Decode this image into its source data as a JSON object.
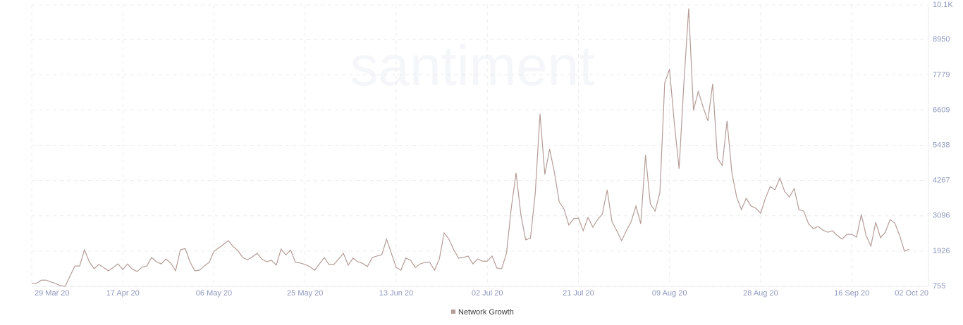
{
  "chart_data": {
    "type": "line",
    "watermark": "santiment",
    "x": [
      "29 Mar 20",
      "30 Mar 20",
      "31 Mar 20",
      "01 Apr 20",
      "02 Apr 20",
      "03 Apr 20",
      "04 Apr 20",
      "05 Apr 20",
      "06 Apr 20",
      "07 Apr 20",
      "08 Apr 20",
      "09 Apr 20",
      "10 Apr 20",
      "11 Apr 20",
      "12 Apr 20",
      "13 Apr 20",
      "14 Apr 20",
      "15 Apr 20",
      "16 Apr 20",
      "17 Apr 20",
      "18 Apr 20",
      "19 Apr 20",
      "20 Apr 20",
      "21 Apr 20",
      "22 Apr 20",
      "23 Apr 20",
      "24 Apr 20",
      "25 Apr 20",
      "26 Apr 20",
      "27 Apr 20",
      "28 Apr 20",
      "29 Apr 20",
      "30 Apr 20",
      "01 May 20",
      "02 May 20",
      "03 May 20",
      "04 May 20",
      "05 May 20",
      "06 May 20",
      "07 May 20",
      "08 May 20",
      "09 May 20",
      "10 May 20",
      "11 May 20",
      "12 May 20",
      "13 May 20",
      "14 May 20",
      "15 May 20",
      "16 May 20",
      "17 May 20",
      "18 May 20",
      "19 May 20",
      "20 May 20",
      "21 May 20",
      "22 May 20",
      "23 May 20",
      "24 May 20",
      "25 May 20",
      "26 May 20",
      "27 May 20",
      "28 May 20",
      "29 May 20",
      "30 May 20",
      "31 May 20",
      "01 Jun 20",
      "02 Jun 20",
      "03 Jun 20",
      "04 Jun 20",
      "05 Jun 20",
      "06 Jun 20",
      "07 Jun 20",
      "08 Jun 20",
      "09 Jun 20",
      "10 Jun 20",
      "11 Jun 20",
      "12 Jun 20",
      "13 Jun 20",
      "14 Jun 20",
      "15 Jun 20",
      "16 Jun 20",
      "17 Jun 20",
      "18 Jun 20",
      "19 Jun 20",
      "20 Jun 20",
      "21 Jun 20",
      "22 Jun 20",
      "23 Jun 20",
      "24 Jun 20",
      "25 Jun 20",
      "26 Jun 20",
      "27 Jun 20",
      "28 Jun 20",
      "29 Jun 20",
      "30 Jun 20",
      "01 Jul 20",
      "02 Jul 20",
      "03 Jul 20",
      "04 Jul 20",
      "05 Jul 20",
      "06 Jul 20",
      "07 Jul 20",
      "08 Jul 20",
      "09 Jul 20",
      "10 Jul 20",
      "11 Jul 20",
      "12 Jul 20",
      "13 Jul 20",
      "14 Jul 20",
      "15 Jul 20",
      "16 Jul 20",
      "17 Jul 20",
      "18 Jul 20",
      "19 Jul 20",
      "20 Jul 20",
      "21 Jul 20",
      "22 Jul 20",
      "23 Jul 20",
      "24 Jul 20",
      "25 Jul 20",
      "26 Jul 20",
      "27 Jul 20",
      "28 Jul 20",
      "29 Jul 20",
      "30 Jul 20",
      "31 Jul 20",
      "01 Aug 20",
      "02 Aug 20",
      "03 Aug 20",
      "04 Aug 20",
      "05 Aug 20",
      "06 Aug 20",
      "07 Aug 20",
      "08 Aug 20",
      "09 Aug 20",
      "10 Aug 20",
      "11 Aug 20",
      "12 Aug 20",
      "13 Aug 20",
      "14 Aug 20",
      "15 Aug 20",
      "16 Aug 20",
      "17 Aug 20",
      "18 Aug 20",
      "19 Aug 20",
      "20 Aug 20",
      "21 Aug 20",
      "22 Aug 20",
      "23 Aug 20",
      "24 Aug 20",
      "25 Aug 20",
      "26 Aug 20",
      "27 Aug 20",
      "28 Aug 20",
      "29 Aug 20",
      "30 Aug 20",
      "31 Aug 20",
      "01 Sep 20",
      "02 Sep 20",
      "03 Sep 20",
      "04 Sep 20",
      "05 Sep 20",
      "06 Sep 20",
      "07 Sep 20",
      "08 Sep 20",
      "09 Sep 20",
      "10 Sep 20",
      "11 Sep 20",
      "12 Sep 20",
      "13 Sep 20",
      "14 Sep 20",
      "15 Sep 20",
      "16 Sep 20",
      "17 Sep 20",
      "18 Sep 20",
      "19 Sep 20",
      "20 Sep 20",
      "21 Sep 20",
      "22 Sep 20",
      "23 Sep 20",
      "24 Sep 20",
      "25 Sep 20",
      "26 Sep 20",
      "27 Sep 20",
      "28 Sep 20"
    ],
    "series": [
      {
        "name": "Network Growth",
        "color": "#b59c98",
        "values": [
          850,
          850,
          960,
          960,
          900,
          850,
          770,
          760,
          1100,
          1430,
          1430,
          1970,
          1570,
          1340,
          1480,
          1380,
          1270,
          1380,
          1500,
          1310,
          1500,
          1320,
          1250,
          1390,
          1430,
          1710,
          1570,
          1500,
          1660,
          1520,
          1270,
          1970,
          2010,
          1570,
          1270,
          1290,
          1430,
          1550,
          1920,
          2030,
          2150,
          2270,
          2080,
          1940,
          1710,
          1640,
          1730,
          1850,
          1660,
          1570,
          1620,
          1460,
          1990,
          1800,
          1960,
          1550,
          1530,
          1480,
          1410,
          1290,
          1500,
          1710,
          1480,
          1480,
          1660,
          1850,
          1460,
          1690,
          1570,
          1520,
          1410,
          1710,
          1760,
          1800,
          2320,
          1850,
          1380,
          1290,
          1690,
          1620,
          1380,
          1500,
          1550,
          1550,
          1290,
          1660,
          2530,
          2320,
          1970,
          1690,
          1710,
          1760,
          1500,
          1660,
          1590,
          1590,
          1760,
          1360,
          1340,
          1850,
          3350,
          4520,
          3140,
          2300,
          2350,
          3840,
          6480,
          4470,
          5310,
          4540,
          3560,
          3320,
          2790,
          3000,
          3020,
          2600,
          3040,
          2720,
          2970,
          3160,
          3960,
          2900,
          2600,
          2270,
          2600,
          2900,
          3420,
          2830,
          5120,
          3490,
          3250,
          3880,
          7510,
          7970,
          6180,
          4660,
          7510,
          9980,
          6600,
          7230,
          6710,
          6250,
          7480,
          5010,
          4770,
          6250,
          4540,
          3720,
          3300,
          3680,
          3420,
          3350,
          3180,
          3680,
          4070,
          3960,
          4350,
          3910,
          3720,
          4000,
          3300,
          3250,
          2830,
          2670,
          2740,
          2620,
          2550,
          2600,
          2440,
          2320,
          2480,
          2480,
          2390,
          3140,
          2440,
          2090,
          2880,
          2370,
          2550,
          2970,
          2850,
          2440,
          1920,
          1990
        ]
      }
    ],
    "xlim": [
      "29 Mar 20",
      "02 Oct 20"
    ],
    "xticks": [
      "29 Mar 20",
      "17 Apr 20",
      "06 May 20",
      "25 May 20",
      "13 Jun 20",
      "02 Jul 20",
      "21 Jul 20",
      "09 Aug 20",
      "28 Aug 20",
      "16 Sep 20",
      "02 Oct 20"
    ],
    "ylim": [
      755,
      10100
    ],
    "yticks": [
      755,
      1926,
      3096,
      4267,
      5438,
      6609,
      7779,
      8950,
      {
        "value": 10100,
        "label": "10.1K"
      }
    ],
    "grid": true
  }
}
